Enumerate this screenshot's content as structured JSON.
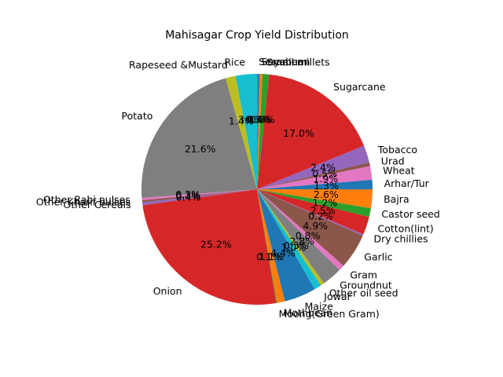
{
  "chart_data": {
    "type": "pie",
    "title": "Mahisagar Crop Yield Distribution",
    "start_angle_deg": 0,
    "direction": "counterclockwise",
    "slices": [
      {
        "label": "Arhar/Tur",
        "value": 1.3,
        "pct": "1.3%",
        "color": "#1f77b4"
      },
      {
        "label": "Wheat",
        "value": 1.9,
        "pct": "1.9%",
        "color": "#e377c2"
      },
      {
        "label": "Urad",
        "value": 0.5,
        "pct": "0.5%",
        "color": "#8c564b"
      },
      {
        "label": "Tobacco",
        "value": 2.4,
        "pct": "2.4%",
        "color": "#9467bd"
      },
      {
        "label": "Sugarcane",
        "value": 17.0,
        "pct": "17.0%",
        "color": "#d62728"
      },
      {
        "label": "Small millets",
        "value": 0.9,
        "pct": "0.9%",
        "color": "#2ca02c"
      },
      {
        "label": "Soyabean",
        "value": 0.4,
        "pct": "0.4%",
        "color": "#ff7f0e"
      },
      {
        "label": "Sesamum",
        "value": 0.3,
        "pct": "0.3%",
        "color": "#1f77b4"
      },
      {
        "label": "Rice",
        "value": 3.0,
        "pct": "3.0%",
        "color": "#17becf"
      },
      {
        "label": "Rapeseed &Mustard",
        "value": 1.4,
        "pct": "1.4%",
        "color": "#bcbd22"
      },
      {
        "label": "Potato",
        "value": 21.6,
        "pct": "21.6%",
        "color": "#7f7f7f"
      },
      {
        "label": "Other Rabi pulses",
        "value": 0.3,
        "pct": "0.3%",
        "color": "#e377c2"
      },
      {
        "label": "Other Kharif pulses",
        "value": 0.3,
        "pct": "0.3%",
        "color": "#8c564b"
      },
      {
        "label": "Other Cereals",
        "value": 0.4,
        "pct": "0.4%",
        "color": "#9467bd"
      },
      {
        "label": "Onion",
        "value": 25.2,
        "pct": "25.2%",
        "color": "#d62728"
      },
      {
        "label": "Moong(Green Gram)",
        "value": 0.1,
        "pct": "0.1%",
        "color": "#2ca02c"
      },
      {
        "label": "Mothbean",
        "value": 1.1,
        "pct": "1.1%",
        "color": "#ff7f0e"
      },
      {
        "label": "Maize",
        "value": 4.4,
        "pct": "4.4%",
        "color": "#1f77b4"
      },
      {
        "label": "Jowar",
        "value": 1.0,
        "pct": "1.0%",
        "color": "#17becf"
      },
      {
        "label": "Other oil seed",
        "value": 0.5,
        "pct": "0.5%",
        "color": "#bcbd22"
      },
      {
        "label": "Groundnut",
        "value": 2.8,
        "pct": "2.8%",
        "color": "#7f7f7f"
      },
      {
        "label": "Gram",
        "value": 0.8,
        "pct": "0.8%",
        "color": "#e377c2"
      },
      {
        "label": "Garlic",
        "value": 4.9,
        "pct": "4.9%",
        "color": "#8c564b"
      },
      {
        "label": "Dry chillies",
        "value": 0.2,
        "pct": "0.2%",
        "color": "#9467bd"
      },
      {
        "label": "Cotton(lint)",
        "value": 2.5,
        "pct": "2.5%",
        "color": "#d62728"
      },
      {
        "label": "Castor seed",
        "value": 1.2,
        "pct": "1.2%",
        "color": "#2ca02c"
      },
      {
        "label": "Bajra",
        "value": 2.6,
        "pct": "2.6%",
        "color": "#ff7f0e"
      }
    ]
  }
}
